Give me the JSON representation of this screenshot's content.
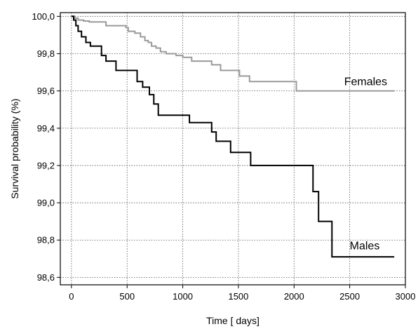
{
  "chart_data": {
    "type": "line",
    "title": "",
    "xlabel": "Time [ days]",
    "ylabel": "Survival probability (%)",
    "xlim": [
      -100,
      3000
    ],
    "ylim": [
      98.56,
      100.02
    ],
    "x_ticks": [
      0,
      500,
      1000,
      1500,
      2000,
      2500,
      3000
    ],
    "x_tick_labels": [
      "0",
      "500",
      "1000",
      "1500",
      "2000",
      "2500",
      "3000"
    ],
    "y_ticks": [
      98.6,
      98.8,
      99.0,
      99.2,
      99.4,
      99.6,
      99.8,
      100.0
    ],
    "y_tick_labels": [
      "98,6",
      "98,8",
      "99,0",
      "99,2",
      "99,4",
      "99,6",
      "99,8",
      "100,0"
    ],
    "grid": true,
    "step": true,
    "series": [
      {
        "name": "Females",
        "color": "#9a9a9a",
        "label_position": {
          "x": 2450,
          "y": 99.63
        },
        "x": [
          0,
          30,
          60,
          110,
          160,
          310,
          490,
          510,
          570,
          620,
          660,
          690,
          720,
          760,
          800,
          850,
          940,
          1000,
          1080,
          1260,
          1340,
          1510,
          1600,
          2020,
          2900
        ],
        "y": [
          100.0,
          99.99,
          99.98,
          99.975,
          99.97,
          99.95,
          99.94,
          99.92,
          99.91,
          99.89,
          99.87,
          99.86,
          99.84,
          99.83,
          99.81,
          99.8,
          99.79,
          99.78,
          99.76,
          99.74,
          99.71,
          99.68,
          99.65,
          99.6,
          99.6
        ]
      },
      {
        "name": "Males",
        "color": "#000000",
        "label_position": {
          "x": 2500,
          "y": 98.75
        },
        "x": [
          0,
          20,
          40,
          60,
          90,
          130,
          170,
          270,
          310,
          400,
          590,
          640,
          700,
          740,
          780,
          1060,
          1260,
          1300,
          1430,
          1610,
          2170,
          2220,
          2280,
          2340,
          2900
        ],
        "y": [
          100.0,
          99.98,
          99.95,
          99.92,
          99.89,
          99.86,
          99.84,
          99.79,
          99.76,
          99.71,
          99.65,
          99.62,
          99.58,
          99.53,
          99.47,
          99.43,
          99.38,
          99.33,
          99.27,
          99.2,
          99.06,
          98.9,
          98.9,
          98.71,
          98.71
        ]
      }
    ]
  }
}
